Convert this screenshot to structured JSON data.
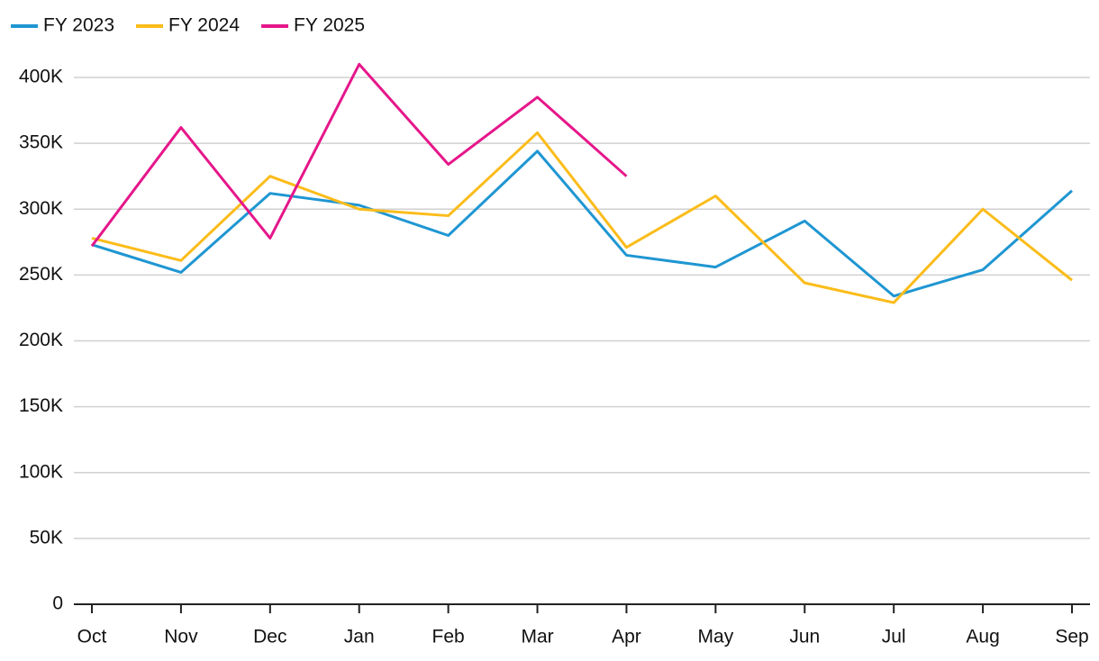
{
  "chart_data": {
    "type": "line",
    "categories": [
      "Oct",
      "Nov",
      "Dec",
      "Jan",
      "Feb",
      "Mar",
      "Apr",
      "May",
      "Jun",
      "Jul",
      "Aug",
      "Sep"
    ],
    "series": [
      {
        "name": "FY 2023",
        "color": "#1f96d2",
        "values": [
          273000,
          252000,
          312000,
          303000,
          280000,
          344000,
          265000,
          256000,
          291000,
          234000,
          254000,
          314000
        ]
      },
      {
        "name": "FY 2024",
        "color": "#fbbc1a",
        "values": [
          278000,
          261000,
          325000,
          300000,
          295000,
          358000,
          271000,
          310000,
          244000,
          229000,
          300000,
          246000
        ]
      },
      {
        "name": "FY 2025",
        "color": "#e6168a",
        "values": [
          272000,
          362000,
          278000,
          410000,
          334000,
          385000,
          325000,
          null,
          null,
          null,
          null,
          null
        ]
      }
    ],
    "ylim": [
      0,
      400000
    ],
    "yticks": [
      0,
      {
        "value": 50000,
        "label": "50K"
      },
      {
        "value": 100000,
        "label": "100K"
      },
      {
        "value": 150000,
        "label": "150K"
      },
      {
        "value": 200000,
        "label": "200K"
      },
      {
        "value": 250000,
        "label": "250K"
      },
      {
        "value": 300000,
        "label": "300K"
      },
      {
        "value": 350000,
        "label": "350K"
      },
      {
        "value": 400000,
        "label": "400K"
      }
    ],
    "grid": true,
    "legend": "top-left"
  }
}
